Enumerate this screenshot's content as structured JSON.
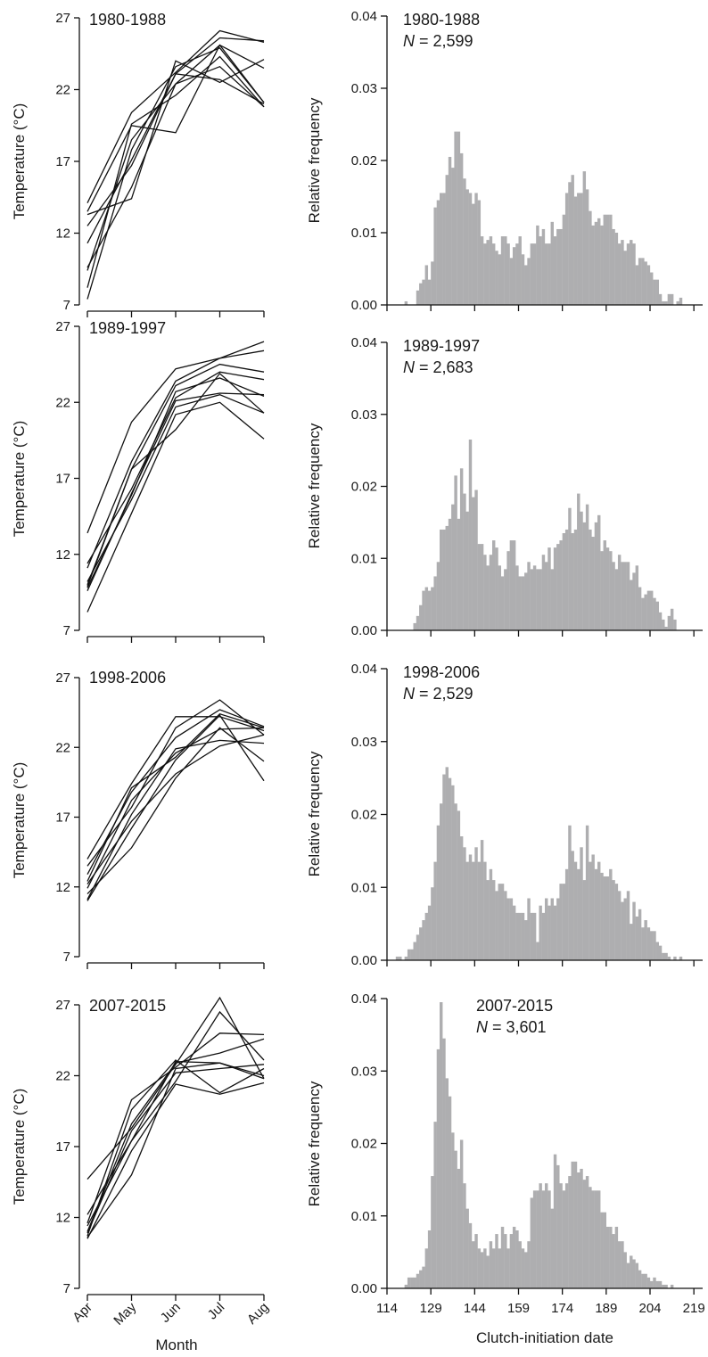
{
  "chart_data": [
    {
      "type": "line",
      "title": "1980-1988",
      "xlabel": "",
      "ylabel": "Temperature (°C)",
      "x": [
        "Apr",
        "May",
        "Jun",
        "Jul",
        "Aug"
      ],
      "ylim": [
        7,
        27
      ],
      "yticks": [
        7,
        12,
        17,
        22,
        27
      ],
      "series": [
        {
          "values": [
            14.1,
            20.4,
            23.2,
            26.1,
            25.3
          ]
        },
        {
          "values": [
            13.3,
            14.4,
            24.0,
            22.5,
            24.1
          ]
        },
        {
          "values": [
            13.5,
            19.5,
            19.0,
            25.1,
            23.5
          ]
        },
        {
          "values": [
            11.3,
            17.1,
            23.1,
            25.6,
            25.4
          ]
        },
        {
          "values": [
            9.4,
            18.5,
            22.4,
            25.1,
            21.1
          ]
        },
        {
          "values": [
            9.6,
            15.2,
            22.4,
            23.6,
            20.8
          ]
        },
        {
          "values": [
            12.5,
            16.7,
            23.1,
            22.7,
            21.0
          ]
        },
        {
          "values": [
            7.4,
            17.8,
            23.6,
            24.9,
            21.1
          ]
        },
        {
          "values": [
            8.2,
            19.6,
            21.6,
            24.3,
            20.8
          ]
        }
      ]
    },
    {
      "type": "bar",
      "title": "1980-1988",
      "n_prefix": "N",
      "n_value": "= 2,599",
      "xlabel": "",
      "ylabel": "Relative frequency",
      "xlim": [
        114,
        222
      ],
      "ylim": [
        0,
        0.04
      ],
      "yticks": [
        "0.00",
        "0.01",
        "0.02",
        "0.03",
        "0.04"
      ],
      "x_start": 114,
      "values": [
        0,
        0,
        0,
        0,
        0,
        0,
        0.0005,
        0,
        0,
        0,
        0.002,
        0.003,
        0.0035,
        0.0055,
        0.0035,
        0.006,
        0.0135,
        0.0145,
        0.0155,
        0.0155,
        0.018,
        0.0205,
        0.019,
        0.024,
        0.024,
        0.021,
        0.0175,
        0.016,
        0.0155,
        0.014,
        0.0155,
        0.0145,
        0.0095,
        0.0085,
        0.009,
        0.0095,
        0.0085,
        0.0075,
        0.007,
        0.0095,
        0.0095,
        0.0085,
        0.0065,
        0.008,
        0.0085,
        0.0095,
        0.007,
        0.0055,
        0.0065,
        0.0085,
        0.0085,
        0.011,
        0.0095,
        0.0105,
        0.0085,
        0.0085,
        0.0115,
        0.0095,
        0.0105,
        0.0105,
        0.0125,
        0.0155,
        0.017,
        0.018,
        0.015,
        0.0155,
        0.0155,
        0.0185,
        0.016,
        0.013,
        0.011,
        0.0115,
        0.012,
        0.011,
        0.0125,
        0.0125,
        0.0125,
        0.0105,
        0.01,
        0.0085,
        0.009,
        0.0075,
        0.0085,
        0.009,
        0.0085,
        0.0055,
        0.0065,
        0.0065,
        0.006,
        0.0055,
        0.0045,
        0.0035,
        0.0035,
        0.0015,
        0.0005,
        0.0005,
        0.0015,
        0.0015,
        0,
        0.0005,
        0.001
      ]
    },
    {
      "type": "line",
      "title": "1989-1997",
      "xlabel": "",
      "ylabel": "Temperature (°C)",
      "x": [
        "Apr",
        "May",
        "Jun",
        "Jul",
        "Aug"
      ],
      "ylim": [
        7,
        27
      ],
      "yticks": [
        7,
        12,
        17,
        22,
        27
      ],
      "series": [
        {
          "values": [
            13.4,
            20.7,
            24.2,
            24.9,
            26.0
          ]
        },
        {
          "values": [
            11.1,
            18.1,
            23.4,
            24.9,
            25.4
          ]
        },
        {
          "values": [
            10.0,
            17.6,
            23.1,
            24.5,
            24.0
          ]
        },
        {
          "values": [
            11.4,
            16.3,
            22.3,
            24.0,
            23.5
          ]
        },
        {
          "values": [
            9.8,
            15.9,
            22.7,
            23.6,
            22.4
          ]
        },
        {
          "values": [
            10.2,
            15.6,
            21.7,
            22.5,
            21.3
          ]
        },
        {
          "values": [
            9.6,
            16.0,
            22.1,
            22.6,
            22.5
          ]
        },
        {
          "values": [
            9.9,
            17.6,
            20.2,
            23.9,
            21.3
          ]
        },
        {
          "values": [
            8.2,
            14.7,
            21.2,
            22.0,
            19.6
          ]
        }
      ]
    },
    {
      "type": "bar",
      "title": "1989-1997",
      "n_prefix": "N",
      "n_value": "= 2,683",
      "xlabel": "",
      "ylabel": "Relative frequency",
      "xlim": [
        114,
        222
      ],
      "ylim": [
        0,
        0.04
      ],
      "yticks": [
        "0.00",
        "0.01",
        "0.02",
        "0.03",
        "0.04"
      ],
      "x_start": 114,
      "values": [
        0,
        0,
        0,
        0,
        0,
        0,
        0,
        0,
        0,
        0.001,
        0.002,
        0.0035,
        0.0055,
        0.006,
        0.0055,
        0.006,
        0.0075,
        0.0095,
        0.014,
        0.014,
        0.0145,
        0.0155,
        0.0175,
        0.0215,
        0.0155,
        0.0225,
        0.019,
        0.0165,
        0.0265,
        0.0185,
        0.0195,
        0.012,
        0.012,
        0.0105,
        0.009,
        0.0105,
        0.0125,
        0.0115,
        0.009,
        0.0075,
        0.0085,
        0.011,
        0.0125,
        0.0125,
        0.009,
        0.0075,
        0.0075,
        0.008,
        0.0095,
        0.0085,
        0.009,
        0.0085,
        0.0085,
        0.0105,
        0.0095,
        0.0115,
        0.0085,
        0.0115,
        0.012,
        0.0125,
        0.0135,
        0.014,
        0.017,
        0.0135,
        0.014,
        0.019,
        0.0165,
        0.015,
        0.0175,
        0.014,
        0.013,
        0.015,
        0.016,
        0.011,
        0.0125,
        0.0115,
        0.011,
        0.0095,
        0.0085,
        0.0105,
        0.0095,
        0.0095,
        0.0095,
        0.007,
        0.008,
        0.009,
        0.006,
        0.0045,
        0.005,
        0.0055,
        0.0055,
        0.0045,
        0.004,
        0.0025,
        0.0015,
        0.0005,
        0.002,
        0.003,
        0.0015,
        0,
        0
      ]
    },
    {
      "type": "line",
      "title": "1998-2006",
      "xlabel": "",
      "ylabel": "Temperature (°C)",
      "x": [
        "Apr",
        "May",
        "Jun",
        "Jul",
        "Aug"
      ],
      "ylim": [
        7,
        27
      ],
      "yticks": [
        7,
        12,
        17,
        22,
        27
      ],
      "series": [
        {
          "values": [
            14.0,
            19.4,
            24.2,
            24.2,
            23.2
          ]
        },
        {
          "values": [
            13.5,
            17.7,
            23.4,
            25.4,
            22.9
          ]
        },
        {
          "values": [
            12.9,
            18.8,
            22.7,
            24.7,
            23.5
          ]
        },
        {
          "values": [
            12.4,
            19.1,
            21.3,
            24.4,
            23.4
          ]
        },
        {
          "values": [
            11.9,
            18.2,
            21.6,
            23.3,
            23.4
          ]
        },
        {
          "values": [
            11.1,
            17.2,
            21.9,
            22.5,
            22.3
          ]
        },
        {
          "values": [
            11.0,
            16.2,
            21.1,
            24.3,
            19.6
          ]
        },
        {
          "values": [
            12.2,
            16.7,
            20.1,
            22.1,
            22.9
          ]
        },
        {
          "values": [
            11.5,
            14.8,
            19.8,
            23.4,
            21.0
          ]
        }
      ]
    },
    {
      "type": "bar",
      "title": "1998-2006",
      "n_prefix": "N",
      "n_value": "= 2,529",
      "xlabel": "",
      "ylabel": "Relative frequency",
      "xlim": [
        114,
        222
      ],
      "ylim": [
        0,
        0.04
      ],
      "yticks": [
        "0.00",
        "0.01",
        "0.02",
        "0.03",
        "0.04"
      ],
      "x_start": 114,
      "values": [
        0,
        0,
        0,
        0.0005,
        0.0005,
        0,
        0.0005,
        0.0015,
        0.0015,
        0.0025,
        0.0035,
        0.0045,
        0.0055,
        0.0065,
        0.0075,
        0.01,
        0.0135,
        0.0185,
        0.0215,
        0.0255,
        0.0265,
        0.025,
        0.024,
        0.0215,
        0.0205,
        0.017,
        0.0155,
        0.0135,
        0.0145,
        0.0135,
        0.0155,
        0.0135,
        0.0165,
        0.0135,
        0.011,
        0.0125,
        0.011,
        0.0095,
        0.0105,
        0.0105,
        0.0095,
        0.0085,
        0.0085,
        0.0075,
        0.0065,
        0.0065,
        0.0065,
        0.0055,
        0.0085,
        0.0065,
        0.0065,
        0.0025,
        0.0075,
        0.0065,
        0.0085,
        0.0075,
        0.0085,
        0.0075,
        0.0085,
        0.0105,
        0.0105,
        0.0125,
        0.0185,
        0.015,
        0.0135,
        0.0125,
        0.0155,
        0.011,
        0.0185,
        0.0135,
        0.0145,
        0.0125,
        0.0135,
        0.012,
        0.0115,
        0.0115,
        0.0125,
        0.011,
        0.0105,
        0.0095,
        0.008,
        0.0085,
        0.0095,
        0.005,
        0.008,
        0.006,
        0.007,
        0.0045,
        0.0055,
        0.0045,
        0.004,
        0.004,
        0.0025,
        0.002,
        0.001,
        0.001,
        0.0005,
        0,
        0.0005,
        0,
        0.0005
      ]
    },
    {
      "type": "line",
      "title": "2007-2015",
      "xlabel": "Month",
      "ylabel": "Temperature (°C)",
      "x": [
        "Apr",
        "May",
        "Jun",
        "Jul",
        "Aug"
      ],
      "ylim": [
        7,
        27
      ],
      "yticks": [
        7,
        12,
        17,
        22,
        27
      ],
      "series": [
        {
          "values": [
            14.7,
            18.3,
            22.8,
            27.5,
            21.8
          ]
        },
        {
          "values": [
            12.2,
            17.4,
            21.6,
            26.5,
            23.1
          ]
        },
        {
          "values": [
            11.6,
            20.3,
            22.6,
            25.0,
            24.9
          ]
        },
        {
          "values": [
            11.0,
            18.6,
            22.9,
            23.6,
            24.6
          ]
        },
        {
          "values": [
            10.9,
            18.1,
            22.2,
            22.5,
            22.8
          ]
        },
        {
          "values": [
            10.6,
            15.0,
            22.5,
            22.9,
            22.0
          ]
        },
        {
          "values": [
            11.4,
            17.4,
            23.0,
            22.9,
            21.8
          ]
        },
        {
          "values": [
            10.5,
            16.7,
            21.4,
            20.7,
            21.5
          ]
        },
        {
          "values": [
            10.7,
            19.6,
            23.1,
            20.8,
            22.5
          ]
        }
      ]
    },
    {
      "type": "bar",
      "title": "2007-2015",
      "n_prefix": "N",
      "n_value": "= 3,601",
      "xlabel": "Clutch-initiation date",
      "ylabel": "Relative frequency",
      "xlim": [
        114,
        222
      ],
      "ylim": [
        0,
        0.04
      ],
      "yticks": [
        "0.00",
        "0.01",
        "0.02",
        "0.03",
        "0.04"
      ],
      "xticks": [
        114,
        129,
        144,
        159,
        174,
        189,
        204,
        219
      ],
      "x_start": 114,
      "values": [
        0,
        0,
        0,
        0,
        0,
        0,
        0.0005,
        0.0015,
        0.0015,
        0.0015,
        0.002,
        0.0025,
        0.003,
        0.0055,
        0.008,
        0.0155,
        0.023,
        0.033,
        0.0395,
        0.0345,
        0.029,
        0.0265,
        0.0215,
        0.019,
        0.0165,
        0.0205,
        0.0145,
        0.011,
        0.009,
        0.0065,
        0.0075,
        0.0055,
        0.005,
        0.0055,
        0.0045,
        0.0065,
        0.0055,
        0.0075,
        0.0055,
        0.0085,
        0.0075,
        0.0055,
        0.0075,
        0.0085,
        0.008,
        0.0065,
        0.0055,
        0.005,
        0.0065,
        0.0125,
        0.0135,
        0.0135,
        0.0145,
        0.0135,
        0.0145,
        0.0135,
        0.011,
        0.0185,
        0.017,
        0.0145,
        0.0135,
        0.0145,
        0.0155,
        0.0175,
        0.0175,
        0.016,
        0.0165,
        0.015,
        0.0155,
        0.014,
        0.0135,
        0.0135,
        0.0135,
        0.0105,
        0.0105,
        0.0085,
        0.0085,
        0.0075,
        0.0085,
        0.0065,
        0.0065,
        0.005,
        0.0035,
        0.0045,
        0.004,
        0.0035,
        0.0025,
        0.002,
        0.002,
        0.0015,
        0.001,
        0.0015,
        0.001,
        0.001,
        0.0005,
        0.0005,
        0,
        0.0005,
        0,
        0,
        0
      ]
    }
  ],
  "month_labels": [
    "Apr",
    "May",
    "Jun",
    "Jul",
    "Aug"
  ]
}
